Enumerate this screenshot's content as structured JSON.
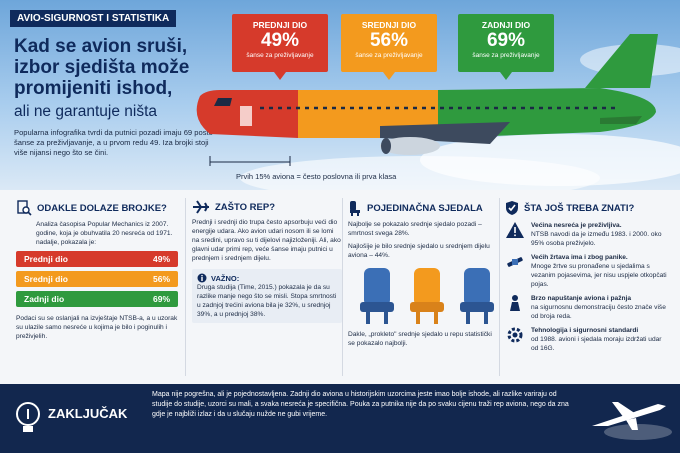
{
  "tag": "AVIO-SIGURNOST I STATISTIKA",
  "headline": {
    "line1": "Kad se avion sruši, izbor sjedišta može promijeniti ishod,",
    "line2": "ali ne garantuje ništa"
  },
  "intro": "Popularna infografika tvrdi da putnici pozadi imaju 69 posto šanse za preživljavanje, a u prvom redu 49. Iza brojki stoji više nijansi nego što se čini.",
  "zones": [
    {
      "title": "PREDNJI DIO",
      "pct": "49%",
      "sub": "šanse za preživljavanje",
      "color": "#d63a2b"
    },
    {
      "title": "SREDNJI DIO",
      "pct": "56%",
      "sub": "šanse za preživljavanje",
      "color": "#f39a1e"
    },
    {
      "title": "ZADNJI DIO",
      "pct": "69%",
      "sub": "šanse za preživljavanje",
      "color": "#2f9a3e"
    }
  ],
  "hero_note": "Prvih 15% aviona = često poslovna ili prva klasa",
  "section1": {
    "title": "ODAKLE DOLAZE BROJKE?",
    "text": "Analiza časopisa Popular Mechanics iz 2007. godine, koja je obuhvatila 20 nesreća od 1971. nadalje, pokazala je:",
    "bars": [
      {
        "label": "Prednji dio",
        "value": "49%",
        "color": "#d63a2b"
      },
      {
        "label": "Srednji dio",
        "value": "56%",
        "color": "#f39a1e"
      },
      {
        "label": "Zadnji dio",
        "value": "69%",
        "color": "#2f9a3e"
      }
    ],
    "foot": "Podaci su se oslanjali na izvještaje NTSB-a, a u uzorak su ulazile samo nesreće u kojima je bilo i poginulih i preživjelih."
  },
  "section2": {
    "title": "ZAŠTO REP?",
    "text": "Prednji i srednji dio trupa često apsorbuju veći dio energije udara. Ako avion udari nosom ili se lomi na sredini, upravo su ti dijelovi najizloženiji. Ali, ako glavni udar primi rep, veće šanse imaju putnici u prednjem i srednjem dijelu.",
    "vazno_title": "VAŽNO:",
    "vazno_text": "Druga studija (Time, 2015.) pokazala je da su razlike manje nego što se misli. Stopa smrtnosti u zadnjoj trećini aviona bila je 32%, u srednjoj 39%, a u prednjoj 38%."
  },
  "section3": {
    "title": "POJEDINAČNA SJEDALA",
    "t1": "Najbolje se pokazalo srednje sjedalo pozadi – smrtnost svega 28%.",
    "t2": "Najlošije je bilo srednje sjedalo u srednjem dijelu aviona – 44%.",
    "t3": "Dakle, „prokleto\" srednje sjedalo u repu statistički se pokazalo najbolji."
  },
  "section4": {
    "title": "ŠTA JOŠ TREBA ZNATI?",
    "items": [
      {
        "title": "Većina nesreća je preživljiva.",
        "text": "NTSB navodi da je između 1983. i 2000. oko 95% osoba preživjelo."
      },
      {
        "title": "Većih žrtava ima i zbog panike.",
        "text": "Mnoge žrtve su pronađene u sjedalima s vezanim pojasevima, jer nisu uspjele otkopčati pojas."
      },
      {
        "title": "Brzo napuštanje aviona i pažnja",
        "text": "na sigurnosnu demonstraciju često znače više od broja reda."
      },
      {
        "title": "Tehnologija i sigurnosni standardi",
        "text": "od 1988. avioni i sjedala moraju izdržati udar od 16G."
      }
    ]
  },
  "footer": {
    "title": "ZAKLJUČAK",
    "text": "Mapa nije pogrešna, ali je pojednostavljena. Zadnji dio aviona u historijskim uzorcima jeste imao bolje ishode, ali razlike variraju od studije do studije, uzorci su mali, a svaka nesreća je specifična. Pouka za putnika nije da po svaku cijenu traži rep aviona, nego da zna gdje je najbliži izlaz i da u slučaju nužde ne gubi vrijeme."
  }
}
